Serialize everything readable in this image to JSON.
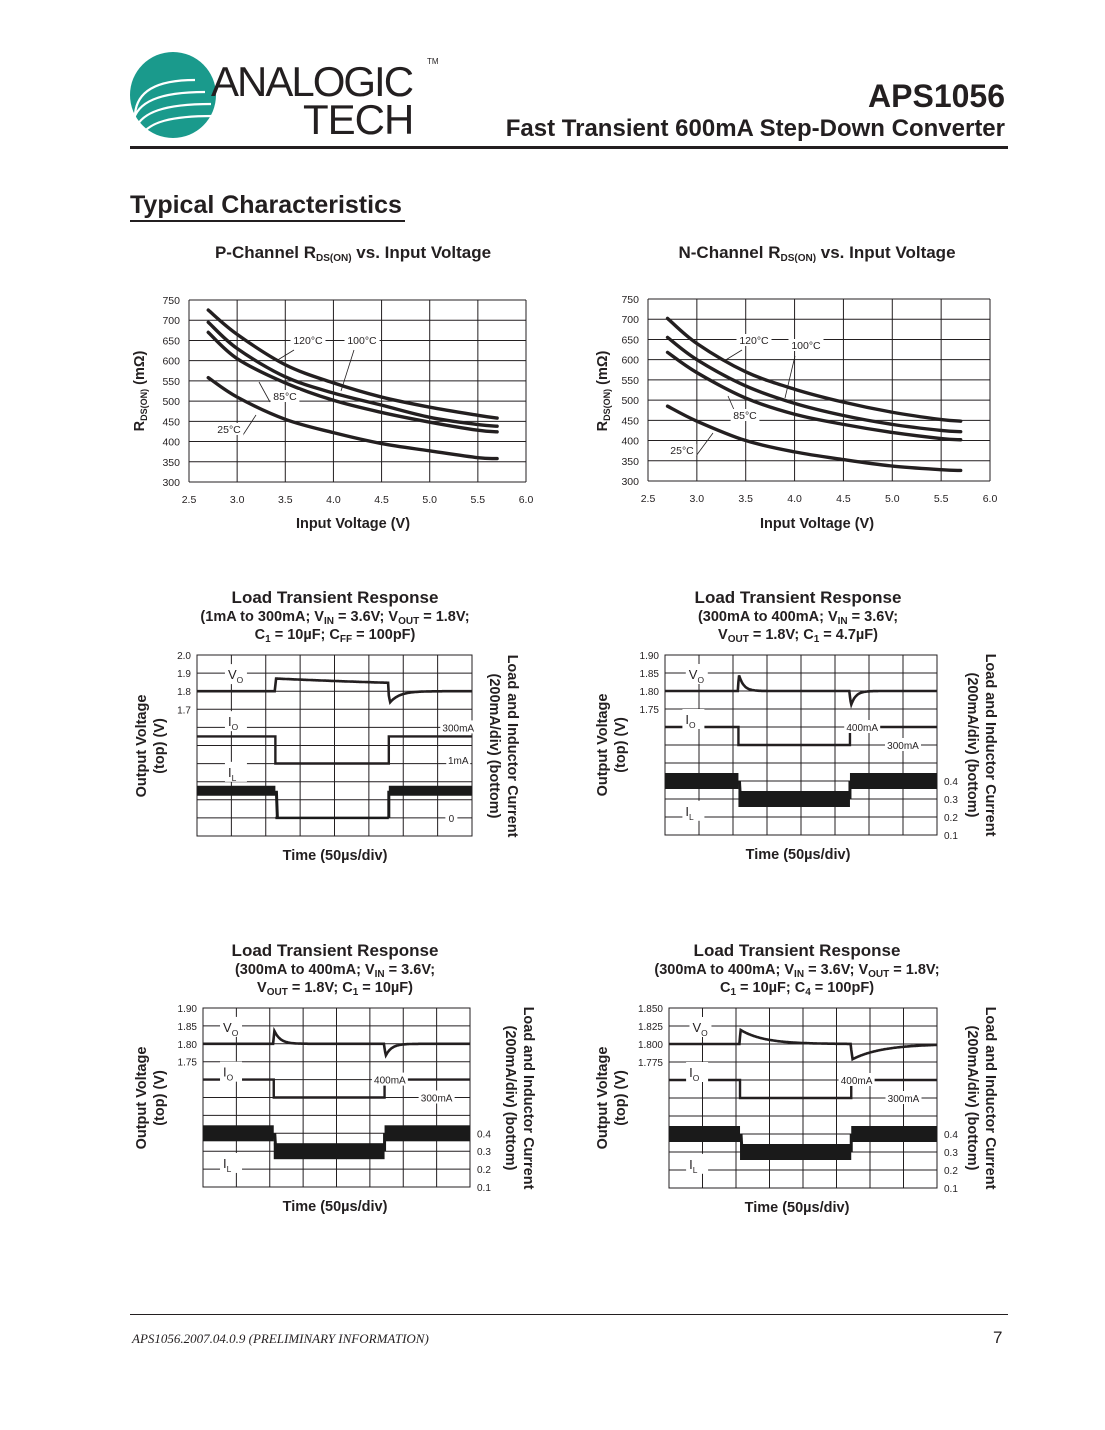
{
  "header": {
    "logo": {
      "line1": "ANALOGIC",
      "line2": "TECH",
      "tm": "TM",
      "color": "#1a9a8c"
    },
    "part_number": "APS1056",
    "subtitle": "Fast Transient 600mA Step-Down Converter"
  },
  "section_title": "Typical Characteristics",
  "footer": {
    "doc_id": "APS1056.2007.04.0.9 (PRELIMINARY INFORMATION)",
    "page": "7"
  },
  "chart_data": [
    {
      "type": "line",
      "title": [
        {
          "t": "P-Channel R"
        },
        {
          "t": "DS(ON)",
          "sub": true
        },
        {
          "t": " vs. Input Voltage"
        }
      ],
      "xlabel": "Input Voltage (V)",
      "ylabel": [
        {
          "t": "R"
        },
        {
          "t": "DS(ON)",
          "sub": true
        },
        {
          "t": " (mΩ)"
        }
      ],
      "xlim": [
        2.5,
        6.0
      ],
      "ylim": [
        300,
        750
      ],
      "grid": true,
      "xticks": [
        "2.5",
        "3.0",
        "3.5",
        "4.0",
        "4.5",
        "5.0",
        "5.5",
        "6.0"
      ],
      "yticks": [
        "300",
        "350",
        "400",
        "450",
        "500",
        "550",
        "600",
        "650",
        "700",
        "750"
      ],
      "x": [
        2.7,
        3.0,
        3.5,
        4.0,
        4.5,
        5.0,
        5.5,
        5.7
      ],
      "series": [
        {
          "name": "120°C",
          "values": [
            725,
            665,
            590,
            545,
            510,
            485,
            465,
            458
          ]
        },
        {
          "name": "100°C",
          "values": [
            695,
            630,
            560,
            520,
            490,
            460,
            442,
            438
          ]
        },
        {
          "name": "85°C",
          "values": [
            670,
            605,
            545,
            502,
            472,
            448,
            428,
            424
          ]
        },
        {
          "name": "25°C",
          "values": [
            558,
            510,
            455,
            422,
            395,
            377,
            360,
            358
          ]
        }
      ]
    },
    {
      "type": "line",
      "title": [
        {
          "t": "N-Channel R"
        },
        {
          "t": "DS(ON)",
          "sub": true
        },
        {
          "t": " vs. Input Voltage"
        }
      ],
      "xlabel": "Input Voltage (V)",
      "ylabel": [
        {
          "t": "R"
        },
        {
          "t": "DS(ON)",
          "sub": true
        },
        {
          "t": " (mΩ)"
        }
      ],
      "xlim": [
        2.5,
        6.0
      ],
      "ylim": [
        300,
        750
      ],
      "grid": true,
      "xticks": [
        "2.5",
        "3.0",
        "3.5",
        "4.0",
        "4.5",
        "5.0",
        "5.5",
        "6.0"
      ],
      "yticks": [
        "300",
        "350",
        "400",
        "450",
        "500",
        "550",
        "600",
        "650",
        "700",
        "750"
      ],
      "x": [
        2.7,
        3.0,
        3.5,
        4.0,
        4.5,
        5.0,
        5.5,
        5.7
      ],
      "series": [
        {
          "name": "120°C",
          "values": [
            702,
            640,
            570,
            527,
            495,
            470,
            452,
            448
          ]
        },
        {
          "name": "100°C",
          "values": [
            655,
            600,
            535,
            492,
            462,
            440,
            425,
            422
          ]
        },
        {
          "name": "85°C",
          "values": [
            618,
            568,
            505,
            465,
            440,
            420,
            405,
            402
          ]
        },
        {
          "name": "25°C",
          "values": [
            485,
            448,
            400,
            372,
            353,
            337,
            328,
            326
          ]
        }
      ]
    },
    {
      "type": "line",
      "title": "Load Transient Response",
      "subtitle": [
        [
          {
            "t": "(1mA to 300mA; V"
          },
          {
            "t": "IN",
            "sub": true
          },
          {
            "t": " = 3.6V; V"
          },
          {
            "t": "OUT",
            "sub": true
          },
          {
            "t": " = 1.8V;"
          }
        ],
        [
          {
            "t": "C"
          },
          {
            "t": "1",
            "sub": true
          },
          {
            "t": " = 10µF; C"
          },
          {
            "t": "FF",
            "sub": true
          },
          {
            "t": " = 100pF)"
          }
        ]
      ],
      "xlabel": "Time (50µs/div)",
      "ylabel_left": [
        "Output Voltage",
        "(top) (V)"
      ],
      "ylabel_right": [
        "Load and Inductor Current",
        "(200mA/div) (bottom)"
      ],
      "yticks_left": [
        "2.0",
        "1.9",
        "1.8",
        "1.7"
      ],
      "yticks_right": [],
      "time_per_div_us": 50,
      "xlim_us": [
        0,
        400
      ],
      "grid": true,
      "step_times_us": [
        114,
        279
      ],
      "vo": {
        "base": 1.8,
        "peak": 1.87,
        "dip": 1.73
      },
      "io_mA": {
        "high": 300,
        "low": 1
      },
      "il_A": {
        "high": 0.3,
        "low": 0
      },
      "trace_labels": [
        [
          {
            "t": "V"
          },
          {
            "t": "O",
            "sub": true
          }
        ],
        [
          {
            "t": "I"
          },
          {
            "t": "O",
            "sub": true
          }
        ],
        [
          {
            "t": "I"
          },
          {
            "t": "L",
            "sub": true
          }
        ]
      ],
      "level_labels": [
        "300mA",
        "1mA",
        "0"
      ]
    },
    {
      "type": "line",
      "title": "Load Transient Response",
      "subtitle": [
        [
          {
            "t": "(300mA to 400mA; V"
          },
          {
            "t": "IN",
            "sub": true
          },
          {
            "t": " = 3.6V;"
          }
        ],
        [
          {
            "t": "V"
          },
          {
            "t": "OUT",
            "sub": true
          },
          {
            "t": " = 1.8V; C"
          },
          {
            "t": "1",
            "sub": true
          },
          {
            "t": " = 4.7µF)"
          }
        ]
      ],
      "xlabel": "Time (50µs/div)",
      "ylabel_left": [
        "Output Voltage",
        "(top) (V)"
      ],
      "ylabel_right": [
        "Load and Inductor Current",
        "(200mA/div) (bottom)"
      ],
      "yticks_left": [
        "1.90",
        "1.85",
        "1.80",
        "1.75"
      ],
      "yticks_right": [
        "0.4",
        "0.3",
        "0.2",
        "0.1"
      ],
      "time_per_div_us": 50,
      "xlim_us": [
        0,
        400
      ],
      "grid": true,
      "step_times_us": [
        108,
        272
      ],
      "vo": {
        "base": 1.8,
        "peak": 1.85,
        "dip": 1.75
      },
      "io_mA": {
        "high": 400,
        "low": 300
      },
      "il_A": {
        "high": 0.4,
        "low": 0.3
      },
      "trace_labels": [
        [
          {
            "t": "V"
          },
          {
            "t": "O",
            "sub": true
          }
        ],
        [
          {
            "t": "I"
          },
          {
            "t": "O",
            "sub": true
          }
        ],
        [
          {
            "t": "I"
          },
          {
            "t": "L",
            "sub": true
          }
        ]
      ],
      "level_labels": [
        "400mA",
        "300mA"
      ]
    },
    {
      "type": "line",
      "title": "Load Transient Response",
      "subtitle": [
        [
          {
            "t": "(300mA to 400mA; V"
          },
          {
            "t": "IN",
            "sub": true
          },
          {
            "t": " = 3.6V;"
          }
        ],
        [
          {
            "t": "V"
          },
          {
            "t": "OUT",
            "sub": true
          },
          {
            "t": " = 1.8V; C"
          },
          {
            "t": "1",
            "sub": true
          },
          {
            "t": " = 10µF)"
          }
        ]
      ],
      "xlabel": "Time (50µs/div)",
      "ylabel_left": [
        "Output Voltage",
        "(top) (V)"
      ],
      "ylabel_right": [
        "Load and Inductor Current",
        "(200mA/div) (bottom)"
      ],
      "yticks_left": [
        "1.90",
        "1.85",
        "1.80",
        "1.75"
      ],
      "yticks_right": [
        "0.4",
        "0.3",
        "0.2",
        "0.1"
      ],
      "time_per_div_us": 50,
      "xlim_us": [
        0,
        400
      ],
      "grid": true,
      "step_times_us": [
        106,
        272
      ],
      "vo": {
        "base": 1.8,
        "peak": 1.84,
        "dip": 1.76
      },
      "io_mA": {
        "high": 400,
        "low": 300
      },
      "il_A": {
        "high": 0.4,
        "low": 0.3
      },
      "trace_labels": [
        [
          {
            "t": "V"
          },
          {
            "t": "O",
            "sub": true
          }
        ],
        [
          {
            "t": "I"
          },
          {
            "t": "O",
            "sub": true
          }
        ],
        [
          {
            "t": "I"
          },
          {
            "t": "L",
            "sub": true
          }
        ]
      ],
      "level_labels": [
        "400mA",
        "300mA"
      ]
    },
    {
      "type": "line",
      "title": "Load Transient Response",
      "subtitle": [
        [
          {
            "t": "(300mA to 400mA; V"
          },
          {
            "t": "IN",
            "sub": true
          },
          {
            "t": " = 3.6V; V"
          },
          {
            "t": "OUT",
            "sub": true
          },
          {
            "t": " = 1.8V;"
          }
        ],
        [
          {
            "t": "C"
          },
          {
            "t": "1",
            "sub": true
          },
          {
            "t": " = 10µF; C"
          },
          {
            "t": "4",
            "sub": true
          },
          {
            "t": " = 100pF)"
          }
        ]
      ],
      "xlabel": "Time (50µs/div)",
      "ylabel_left": [
        "Output Voltage",
        "(top) (V)"
      ],
      "ylabel_right": [
        "Load and Inductor Current",
        "(200mA/div) (bottom)"
      ],
      "yticks_left": [
        "1.850",
        "1.825",
        "1.800",
        "1.775"
      ],
      "yticks_right": [
        "0.4",
        "0.3",
        "0.2",
        "0.1"
      ],
      "time_per_div_us": 50,
      "xlim_us": [
        0,
        400
      ],
      "grid": true,
      "step_times_us": [
        106,
        272
      ],
      "vo": {
        "base": 1.8,
        "peak": 1.82,
        "dip": 1.778
      },
      "io_mA": {
        "high": 400,
        "low": 300
      },
      "il_A": {
        "high": 0.4,
        "low": 0.3
      },
      "trace_labels": [
        [
          {
            "t": "V"
          },
          {
            "t": "O",
            "sub": true
          }
        ],
        [
          {
            "t": "I"
          },
          {
            "t": "O",
            "sub": true
          }
        ],
        [
          {
            "t": "I"
          },
          {
            "t": "L",
            "sub": true
          }
        ]
      ],
      "level_labels": [
        "400mA",
        "300mA"
      ]
    }
  ]
}
